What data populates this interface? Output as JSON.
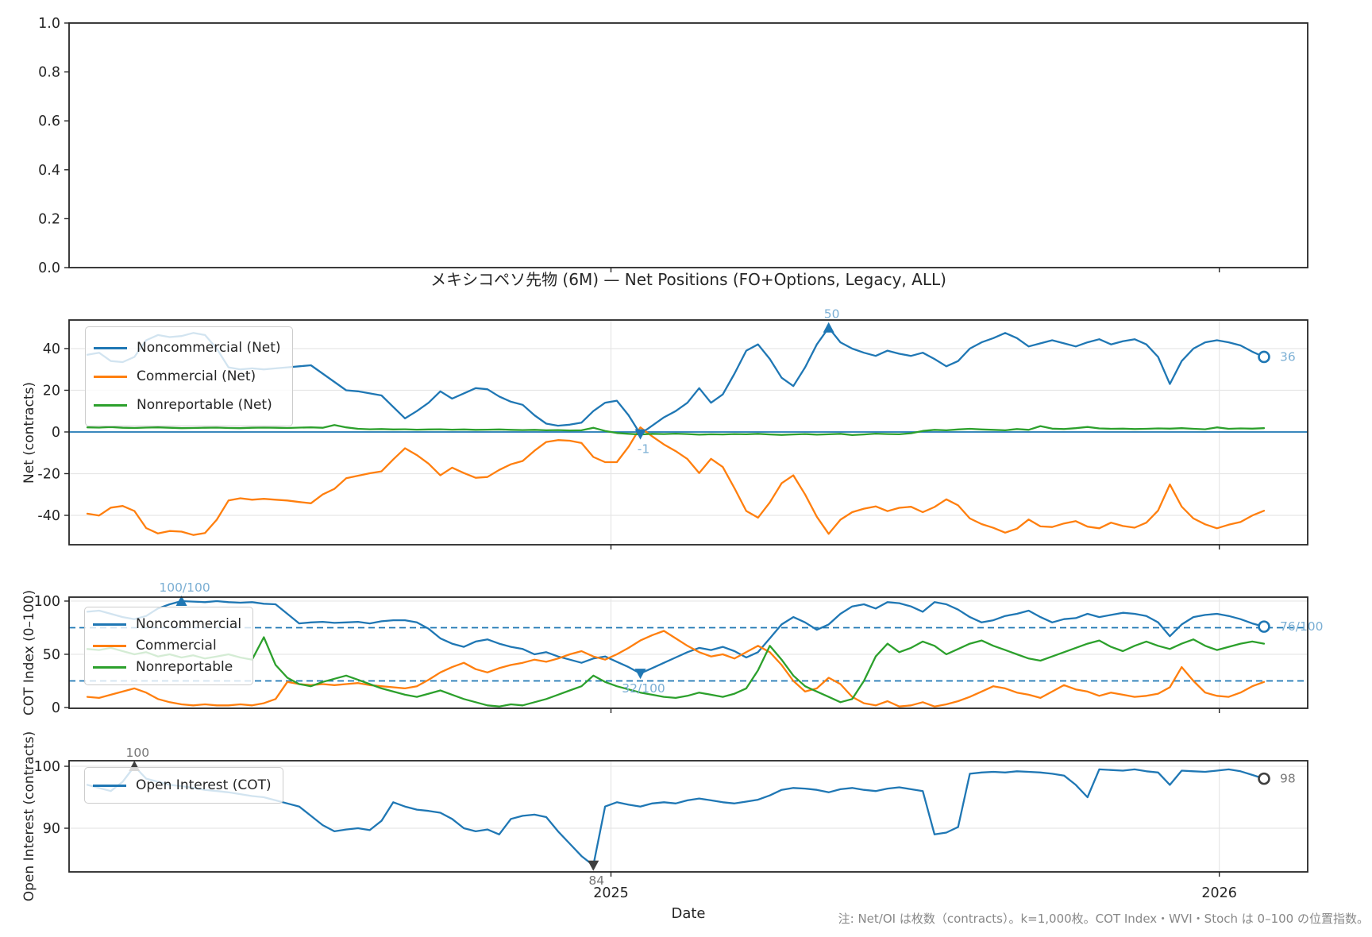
{
  "figure": {
    "title": "メキシコペソ先物 (6M) — Net Positions (FO+Options, Legacy, ALL)",
    "xlabel": "Date",
    "note": "注: Net/OI は枚数（contracts）。k=1,000枚。COT Index・WVI・Stoch は 0–100 の位置指数。",
    "colors": {
      "noncommercial": "#1f77b4",
      "commercial": "#ff7f0e",
      "nonreportable": "#2ca02c",
      "oi_line": "#1f77b4",
      "zero_line": "#1f77b4",
      "dashed_line": "#1f77b4",
      "grid": "#e6e6e6",
      "spine": "#262626",
      "tick_text": "#262626",
      "annotation_text_blue": "#7bafd4",
      "annotation_text_gray": "#777777",
      "annotation_marker_blue": "#1f77b4",
      "annotation_marker_dark": "#3f3f3f"
    }
  },
  "legends": {
    "net": [
      "Noncommercial (Net)",
      "Commercial (Net)",
      "Nonreportable (Net)"
    ],
    "index": [
      "Noncommercial",
      "Commercial",
      "Nonreportable"
    ],
    "oi": [
      "Open Interest (COT)"
    ]
  },
  "x_axis": {
    "label": "Date",
    "n_points": 101,
    "ticks": [
      {
        "label": "2025",
        "index": 44.5
      },
      {
        "label": "2026",
        "index": 96.2
      }
    ]
  },
  "chart_data": [
    {
      "id": "placeholder",
      "type": "line",
      "title": "",
      "ylabel": "",
      "ylim": [
        0,
        1
      ],
      "yticks": [
        {
          "v": 1.0,
          "label": "1.0"
        },
        {
          "v": 0.8,
          "label": "0.8"
        },
        {
          "v": 0.6,
          "label": "0.6"
        },
        {
          "v": 0.4,
          "label": "0.4"
        },
        {
          "v": 0.2,
          "label": "0.2"
        },
        {
          "v": 0.0,
          "label": "0.0"
        }
      ],
      "grid_y": false,
      "grid_x": false,
      "series": [],
      "annotations": []
    },
    {
      "id": "net",
      "type": "line",
      "title": "メキシコペソ先物 (6M) — Net Positions (FO+Options, Legacy, ALL)",
      "ylabel": "Net (contracts)",
      "ylim": [
        -54.1,
        53.7
      ],
      "yticks": [
        {
          "v": 40,
          "label": "40"
        },
        {
          "v": 20,
          "label": "20"
        },
        {
          "v": 0,
          "label": "0"
        },
        {
          "v": -20,
          "label": "-20"
        },
        {
          "v": -40,
          "label": "-40"
        }
      ],
      "grid_y": true,
      "grid_x": true,
      "zero_line": 0,
      "series": [
        {
          "name": "Noncommercial (Net)",
          "color_key": "noncommercial",
          "values": [
            37,
            38,
            34,
            33.5,
            36,
            44,
            46.5,
            45.5,
            46,
            47.5,
            46.5,
            40,
            31,
            30,
            30.5,
            30,
            30.5,
            31,
            31.5,
            32,
            28,
            24,
            20,
            19.5,
            18.5,
            17.5,
            12,
            6.5,
            10,
            14,
            19.5,
            16,
            18.5,
            21,
            20.5,
            17,
            14.5,
            13,
            8,
            4,
            3,
            3.5,
            4.5,
            10,
            14,
            15,
            8,
            -1,
            3,
            7,
            10,
            14,
            21,
            14,
            18,
            28,
            39,
            42,
            35,
            26,
            22,
            31,
            42,
            50,
            43,
            40,
            38,
            36.5,
            39,
            37.5,
            36.5,
            38,
            35,
            31.5,
            34,
            40,
            43,
            45,
            47.5,
            45,
            41,
            42.5,
            44,
            42.5,
            41,
            43,
            44.5,
            42,
            43.5,
            44.5,
            42,
            36,
            23,
            34,
            40,
            43,
            44,
            43,
            41.5,
            38.5,
            36
          ]
        },
        {
          "name": "Commercial (Net)",
          "color_key": "commercial",
          "values": [
            -39.2,
            -40.1,
            -36.3,
            -35.5,
            -37.9,
            -46.1,
            -48.7,
            -47.5,
            -47.8,
            -49.4,
            -48.5,
            -42.1,
            -32.9,
            -31.8,
            -32.5,
            -32.1,
            -32.5,
            -32.9,
            -33.6,
            -34.2,
            -30.0,
            -27.3,
            -22.2,
            -21.0,
            -19.8,
            -18.9,
            -13.2,
            -7.8,
            -11.1,
            -15.2,
            -20.8,
            -17.1,
            -19.7,
            -22.0,
            -21.6,
            -18.2,
            -15.5,
            -13.9,
            -9.0,
            -4.8,
            -3.9,
            -4.2,
            -5.3,
            -12.0,
            -14.5,
            -14.5,
            -7.1,
            2.2,
            -2.1,
            -6.0,
            -9.2,
            -13.0,
            -19.7,
            -12.9,
            -16.8,
            -27.0,
            -37.9,
            -41.1,
            -33.8,
            -24.6,
            -20.8,
            -30.0,
            -40.7,
            -48.9,
            -42.1,
            -38.5,
            -36.8,
            -35.7,
            -38.0,
            -36.4,
            -35.9,
            -38.5,
            -36.0,
            -32.3,
            -35.2,
            -41.5,
            -44.2,
            -46.0,
            -48.3,
            -46.4,
            -42.0,
            -45.3,
            -45.6,
            -43.9,
            -42.8,
            -45.4,
            -46.2,
            -43.5,
            -45.1,
            -45.9,
            -43.5,
            -37.7,
            -25.2,
            -35.8,
            -41.5,
            -44.3,
            -46.2,
            -44.5,
            -43.2,
            -40.1,
            -37.8
          ]
        },
        {
          "name": "Nonreportable (Net)",
          "color_key": "nonreportable",
          "values": [
            2.2,
            2.1,
            2.3,
            2.0,
            1.9,
            2.1,
            2.2,
            2.0,
            1.8,
            1.9,
            2.0,
            2.1,
            1.9,
            1.8,
            2.0,
            2.1,
            2.0,
            1.9,
            2.1,
            2.2,
            2.0,
            3.3,
            2.2,
            1.5,
            1.3,
            1.4,
            1.2,
            1.3,
            1.1,
            1.2,
            1.3,
            1.1,
            1.2,
            1.0,
            1.1,
            1.2,
            1.0,
            0.9,
            1.0,
            0.8,
            0.9,
            0.7,
            0.8,
            2.0,
            0.5,
            -0.5,
            -0.9,
            -1.2,
            -0.9,
            -1.0,
            -0.8,
            -1.0,
            -1.3,
            -1.1,
            -1.2,
            -1.0,
            -1.1,
            -0.9,
            -1.2,
            -1.4,
            -1.2,
            -1.0,
            -1.3,
            -1.1,
            -0.9,
            -1.5,
            -1.2,
            -0.8,
            -1.0,
            -1.1,
            -0.6,
            0.5,
            1.0,
            0.8,
            1.2,
            1.5,
            1.2,
            1.0,
            0.8,
            1.4,
            1.0,
            2.8,
            1.6,
            1.4,
            1.8,
            2.4,
            1.7,
            1.5,
            1.6,
            1.4,
            1.5,
            1.7,
            1.6,
            1.8,
            1.5,
            1.3,
            2.2,
            1.5,
            1.7,
            1.6,
            1.8
          ]
        }
      ],
      "annotations": [
        {
          "text": "50",
          "index": 63,
          "value": 50,
          "marker": "up",
          "placement": "above",
          "color": "blue"
        },
        {
          "text": "-1",
          "index": 47,
          "value": -1,
          "marker": "down",
          "placement": "below",
          "color": "blue"
        },
        {
          "text": "36",
          "index": 100,
          "value": 36,
          "marker": "circle",
          "placement": "right",
          "color": "blue"
        }
      ]
    },
    {
      "id": "cot_index",
      "type": "line",
      "title": "",
      "ylabel": "COT Index (0–100)",
      "ylim": [
        -0.75,
        103.7
      ],
      "yticks": [
        {
          "v": 100,
          "label": "100"
        },
        {
          "v": 50,
          "label": "50"
        },
        {
          "v": 0,
          "label": "0"
        }
      ],
      "grid_y": true,
      "grid_x": true,
      "dashed_lines": [
        75,
        25
      ],
      "series": [
        {
          "name": "Noncommercial",
          "color_key": "noncommercial",
          "values": [
            90,
            91,
            88,
            85,
            83,
            86,
            93,
            97,
            100,
            99.5,
            99,
            100,
            99,
            98.5,
            99,
            97.5,
            97,
            88,
            79,
            80,
            80.5,
            79.5,
            80,
            80.5,
            79,
            81,
            82,
            82,
            80,
            74,
            65,
            60,
            57,
            62,
            64,
            60,
            57,
            55,
            50,
            52,
            48,
            45,
            42,
            46,
            48,
            43,
            38,
            32,
            37,
            42,
            47,
            52,
            56,
            54,
            57,
            53,
            47,
            52,
            65,
            78,
            85,
            80,
            73,
            78,
            88,
            95,
            97,
            93,
            99,
            98,
            95,
            90,
            99,
            97,
            92,
            85,
            80,
            82,
            86,
            88,
            91,
            85,
            80,
            83,
            84,
            88,
            85,
            87,
            89,
            88,
            86,
            80,
            67,
            78,
            85,
            87,
            88,
            86,
            83,
            79,
            76
          ]
        },
        {
          "name": "Commercial",
          "color_key": "commercial",
          "values": [
            10,
            9,
            12,
            15,
            18,
            14,
            8,
            5,
            3,
            2,
            3,
            2,
            2,
            3,
            2,
            4,
            8,
            24,
            22,
            21,
            22,
            21,
            22,
            23,
            21,
            20,
            19,
            18,
            20,
            26,
            33,
            38,
            42,
            36,
            33,
            37,
            40,
            42,
            45,
            43,
            46,
            50,
            53,
            48,
            45,
            50,
            56,
            63,
            68,
            72,
            65,
            58,
            52,
            48,
            50,
            46,
            52,
            58,
            52,
            40,
            25,
            15,
            18,
            28,
            22,
            10,
            4,
            2,
            6,
            1,
            2,
            5,
            1,
            3,
            6,
            10,
            15,
            20,
            18,
            14,
            12,
            9,
            15,
            21,
            17,
            15,
            11,
            14,
            12,
            10,
            11,
            13,
            19,
            38,
            25,
            14,
            11,
            10,
            14,
            20,
            24
          ]
        },
        {
          "name": "Nonreportable",
          "color_key": "nonreportable",
          "values": [
            55,
            54,
            56,
            53,
            50,
            52,
            48,
            50,
            47,
            49,
            46,
            48,
            50,
            47,
            45,
            66,
            40,
            28,
            22,
            20,
            24,
            27,
            30,
            26,
            22,
            18,
            15,
            12,
            10,
            13,
            16,
            12,
            8,
            5,
            2,
            1,
            3,
            2,
            5,
            8,
            12,
            16,
            20,
            30,
            24,
            20,
            17,
            14,
            12,
            10,
            9,
            11,
            14,
            12,
            10,
            13,
            18,
            35,
            58,
            45,
            30,
            20,
            15,
            10,
            5,
            8,
            25,
            48,
            60,
            52,
            56,
            62,
            58,
            50,
            55,
            60,
            63,
            58,
            54,
            50,
            46,
            44,
            48,
            52,
            56,
            60,
            63,
            57,
            53,
            58,
            62,
            58,
            55,
            60,
            64,
            58,
            54,
            57,
            60,
            62,
            60
          ]
        }
      ],
      "annotations": [
        {
          "text": "100/100",
          "index": 8,
          "value": 100,
          "marker": "up",
          "placement": "above",
          "color": "blue"
        },
        {
          "text": "32/100",
          "index": 47,
          "value": 32,
          "marker": "down",
          "placement": "below",
          "color": "blue"
        },
        {
          "text": "76/100",
          "index": 100,
          "value": 76,
          "marker": "circle",
          "placement": "right",
          "color": "blue"
        }
      ]
    },
    {
      "id": "open_interest",
      "type": "line",
      "title": "",
      "ylabel": "Open Interest (contracts)",
      "ylim": [
        82.95,
        100.9
      ],
      "yticks": [
        {
          "v": 100,
          "label": "100"
        },
        {
          "v": 90,
          "label": "90"
        }
      ],
      "grid_y": true,
      "grid_x": true,
      "series": [
        {
          "name": "Open Interest (COT)",
          "color_key": "oi_line",
          "values": [
            97,
            96.5,
            96,
            97.5,
            100,
            98,
            97.5,
            97,
            96.8,
            96.5,
            96.2,
            96,
            95.8,
            95.5,
            95.2,
            95,
            94.5,
            94,
            93.5,
            92,
            90.5,
            89.5,
            89.8,
            90,
            89.7,
            91.2,
            94.2,
            93.5,
            93,
            92.8,
            92.5,
            91.5,
            90,
            89.5,
            89.8,
            89,
            91.5,
            92,
            92.2,
            91.8,
            89.5,
            87.5,
            85.5,
            84,
            93.5,
            94.2,
            93.8,
            93.5,
            94,
            94.2,
            94,
            94.5,
            94.8,
            94.5,
            94.2,
            94,
            94.3,
            94.6,
            95.3,
            96.2,
            96.5,
            96.4,
            96.2,
            95.8,
            96.3,
            96.5,
            96.2,
            96,
            96.4,
            96.6,
            96.3,
            96,
            89,
            89.3,
            90.2,
            98.8,
            99,
            99.1,
            99,
            99.2,
            99.1,
            99,
            98.8,
            98.5,
            97,
            95,
            99.5,
            99.4,
            99.3,
            99.5,
            99.2,
            99,
            97,
            99.3,
            99.2,
            99.1,
            99.3,
            99.5,
            99.2,
            98.6,
            98
          ]
        }
      ],
      "annotations": [
        {
          "text": "100",
          "index": 4,
          "value": 100,
          "marker": "up",
          "placement": "above",
          "color": "gray"
        },
        {
          "text": "84",
          "index": 43,
          "value": 84,
          "marker": "down",
          "placement": "below",
          "color": "gray"
        },
        {
          "text": "98",
          "index": 100,
          "value": 98,
          "marker": "circle",
          "placement": "right",
          "color": "gray"
        }
      ]
    }
  ]
}
